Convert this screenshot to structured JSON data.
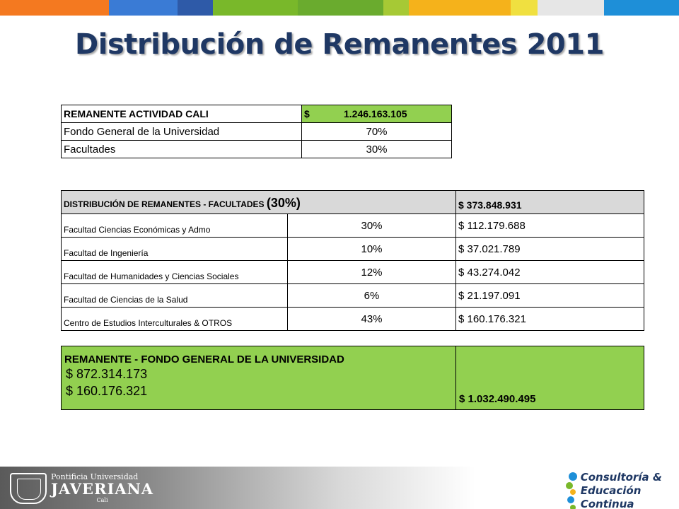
{
  "stripe_colors": [
    "#f47920",
    "#f47920",
    "#3a7bd5",
    "#2e5aa8",
    "#79b82a",
    "#6aab2e",
    "#a6c935",
    "#f5b21b",
    "#f0e040",
    "#e6e6e6",
    "#1e8fd8"
  ],
  "title": "Distribución de Remanentes 2011",
  "table1": {
    "header_label": "REMANENTE   ACTIVIDAD CALI",
    "header_currency": "$",
    "header_amount": "1.246.163.105",
    "rows": [
      {
        "label": "Fondo General de la Universidad",
        "value": "70%"
      },
      {
        "label": "Facultades",
        "value": "30%"
      }
    ]
  },
  "table2": {
    "header_label": "DISTRIBUCIÓN DE REMANENTES - FACULTADES",
    "header_pct": "(30%)",
    "header_amount": "$ 373.848.931",
    "rows": [
      {
        "label": "Facultad Ciencias Económicas y Admo",
        "pct": "30%",
        "amount": "$ 112.179.688"
      },
      {
        "label": "Facultad de Ingeniería",
        "pct": "10%",
        "amount": "$ 37.021.789"
      },
      {
        "label": "Facultad de Humanidades y Ciencias Sociales",
        "pct": "12%",
        "amount": "$ 43.274.042"
      },
      {
        "label": "Facultad de Ciencias de la Salud",
        "pct": "6%",
        "amount": "$ 21.197.091"
      },
      {
        "label": "Centro de Estudios Interculturales & OTROS",
        "pct": "43%",
        "amount": "$ 160.176.321"
      }
    ]
  },
  "table3": {
    "label": "REMANENTE  - FONDO GENERAL  DE LA UNIVERSIDAD",
    "value1": "$ 872.314.173",
    "value2": "$ 160.176.321",
    "total": "$ 1.032.490.495"
  },
  "footer": {
    "javeriana_line1": "Pontificia Universidad",
    "javeriana_line2": "JAVERIANA",
    "javeriana_line3": "Cali",
    "consultoria_line1": "Consultoría &",
    "consultoria_line2": "Educación Continua",
    "dot_colors": [
      "#1e8fd8",
      "#79b82a",
      "#f5b21b",
      "#1e8fd8",
      "#79b82a"
    ]
  }
}
